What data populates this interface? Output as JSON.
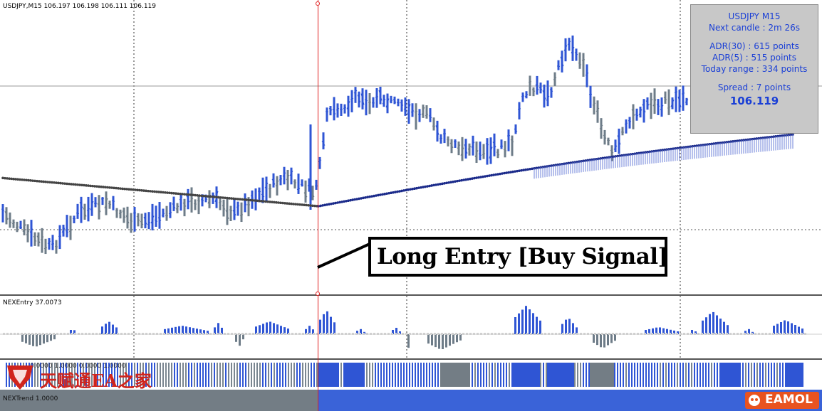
{
  "header": {
    "symbol_label": "USDJPY,M15  106.197 106.198 106.111 106.119"
  },
  "indicator1": {
    "label": "NEXEntry 37.0073"
  },
  "indicator2": {
    "label": "0.0000 1.0000 0.0000 1.0000"
  },
  "indicator3": {
    "label": "NEXTrend 1.0000"
  },
  "info_panel": {
    "title": "USDJPY M15",
    "next_candle": "Next candle : 2m 26s",
    "adr30": "ADR(30) : 615 points",
    "adr5": "ADR(5) : 515 points",
    "today_range": "Today range : 334 points",
    "spread": "Spread : 7 points",
    "price": "106.119"
  },
  "annotation": {
    "text": "Long Entry [Buy Signal]"
  },
  "watermark": {
    "text": "天赋通EA之家"
  },
  "brand": {
    "text": "EAMOL"
  },
  "colors": {
    "bull": "#2f55d4",
    "bear": "#6e7c88",
    "signal_line": "#e02020",
    "ma": "#1a2a8a"
  }
}
